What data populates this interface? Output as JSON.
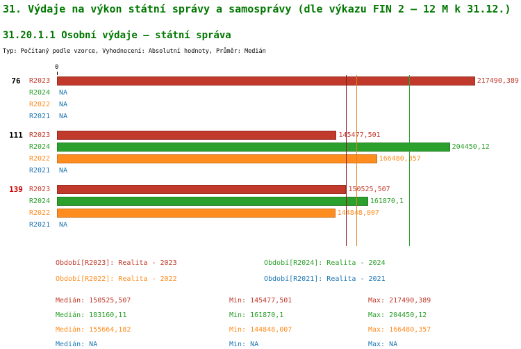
{
  "colors": {
    "r2023": "#c0392b",
    "r2024": "#2ca02c",
    "r2022": "#ff8c1f",
    "r2021": "#1f77b4",
    "na": "#1f77b4",
    "title": "#007700",
    "text": "#000000",
    "group_highlight": "#cc0000",
    "median_r2023": "#8b1a1a",
    "median_r2022": "#e0821e",
    "median_r2024": "#2f9e2f"
  },
  "chart_data": {
    "type": "bar",
    "orientation": "horizontal",
    "title": "31. Výdaje na výkon státní správy a samosprávy (dle výkazu FIN 2 – 12 M k 31.12.)",
    "subtitle": "31.20.1.1 Osobní výdaje – státní správa",
    "meta": "Typ: Počítaný podle vzorce, Vyhodnocení: Absolutní hodnoty, Průměr: Medián",
    "xlim": [
      0,
      240000
    ],
    "x_ticks": [
      "0"
    ],
    "axis_zero_label": "0",
    "grid": false,
    "legend_position": "bottom",
    "groups": [
      {
        "label": "76",
        "highlight": false,
        "rows": [
          {
            "series": "R2023",
            "value": 217490.389,
            "display": "217490,389"
          },
          {
            "series": "R2024",
            "value": null,
            "display": "NA"
          },
          {
            "series": "R2022",
            "value": null,
            "display": "NA"
          },
          {
            "series": "R2021",
            "value": null,
            "display": "NA"
          }
        ]
      },
      {
        "label": "111",
        "highlight": false,
        "rows": [
          {
            "series": "R2023",
            "value": 145477.501,
            "display": "145477,501"
          },
          {
            "series": "R2024",
            "value": 204450.12,
            "display": "204450,12"
          },
          {
            "series": "R2022",
            "value": 166480.357,
            "display": "166480,357"
          },
          {
            "series": "R2021",
            "value": null,
            "display": "NA"
          }
        ]
      },
      {
        "label": "139",
        "highlight": true,
        "rows": [
          {
            "series": "R2023",
            "value": 150525.507,
            "display": "150525,507"
          },
          {
            "series": "R2024",
            "value": 161870.1,
            "display": "161870,1"
          },
          {
            "series": "R2022",
            "value": 144848.007,
            "display": "144848,007"
          },
          {
            "series": "R2021",
            "value": null,
            "display": "NA"
          }
        ]
      }
    ],
    "median_lines": [
      {
        "series": "R2023",
        "value": 150525.507
      },
      {
        "series": "R2022",
        "value": 155664.182
      },
      {
        "series": "R2024",
        "value": 183160.11
      }
    ],
    "legend": [
      {
        "series": "R2023",
        "label": "Období[R2023]: Realita - 2023"
      },
      {
        "series": "R2024",
        "label": "Období[R2024]: Realita - 2024"
      },
      {
        "series": "R2022",
        "label": "Období[R2022]: Realita - 2022"
      },
      {
        "series": "R2021",
        "label": "Období[R2021]: Realita - 2021"
      }
    ],
    "stats": [
      {
        "series": "R2023",
        "median": "Medián: 150525,507",
        "min": "Min: 145477,501",
        "max": "Max: 217490,389"
      },
      {
        "series": "R2024",
        "median": "Medián: 183160,11",
        "min": "Min: 161870,1",
        "max": "Max: 204450,12"
      },
      {
        "series": "R2022",
        "median": "Medián: 155664,182",
        "min": "Min: 144848,007",
        "max": "Max: 166480,357"
      },
      {
        "series": "R2021",
        "median": "Medián: NA",
        "min": "Min: NA",
        "max": "Max: NA"
      }
    ]
  }
}
